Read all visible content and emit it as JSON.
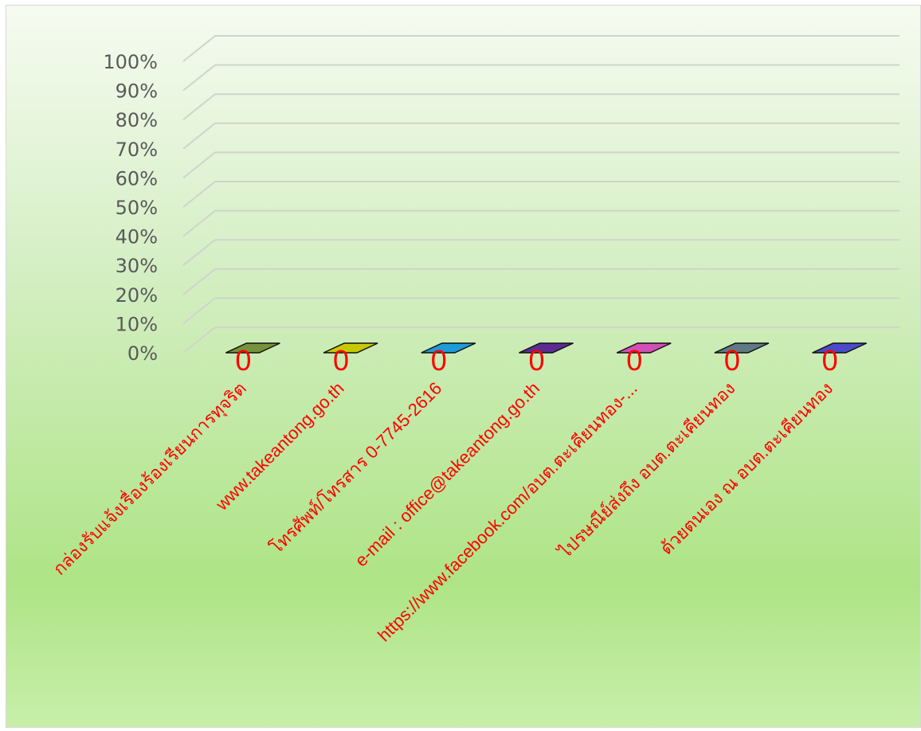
{
  "chart_data": {
    "type": "bar",
    "title": "",
    "xlabel": "",
    "ylabel": "",
    "ylim": [
      0,
      1
    ],
    "ytick_labels": [
      "0%",
      "10%",
      "20%",
      "30%",
      "40%",
      "50%",
      "60%",
      "70%",
      "80%",
      "90%",
      "100%"
    ],
    "categories": [
      "กล่องรับแจ้งเรื่องร้องเรียนการทุจริต",
      "www.takeantong.go.th",
      "โทรศัพท์/โทรสาร 0-7745-2616",
      "e-mail : office@takeantong.go.th",
      "https://www.facebook.com/อบต.ตะเคียนทอง-...",
      "ไปรษณีย์ส่งถึง อบต.ตะเคียนทอง",
      "ด้วยตนเอง ณ อบต.ตะเคียนทอง"
    ],
    "values": [
      0,
      0,
      0,
      0,
      0,
      0,
      0
    ],
    "data_labels": [
      "0",
      "0",
      "0",
      "0",
      "0",
      "0",
      "0"
    ],
    "bar_colors": [
      "#76923c",
      "#c8c800",
      "#1f9bd7",
      "#5c2d91",
      "#d24fb5",
      "#5f7a84",
      "#4b4bc8"
    ],
    "label_color": "#ff0000",
    "grid": true,
    "legend": "none",
    "style": "3d-column"
  }
}
